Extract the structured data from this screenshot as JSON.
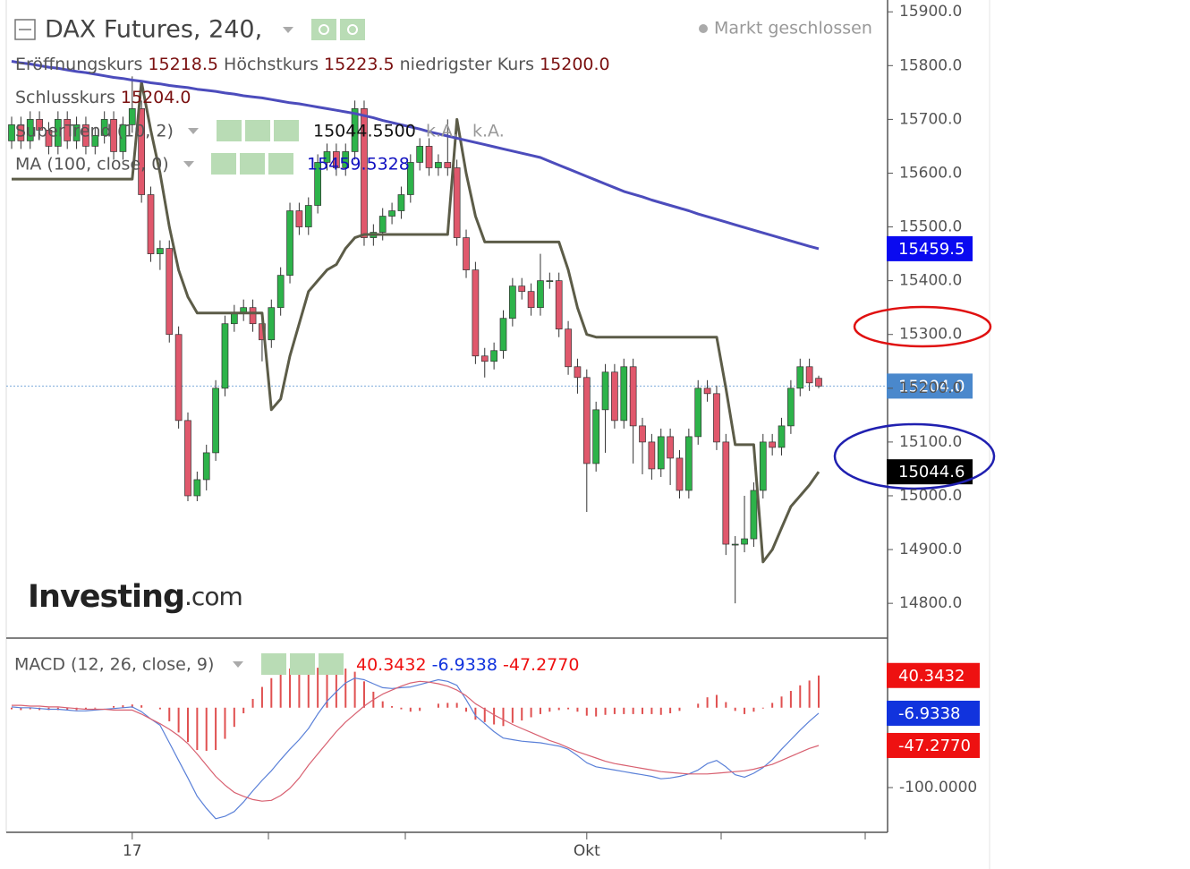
{
  "chart_data": [
    {
      "type": "candlestick",
      "title": "DAX Futures, 240,",
      "status": "Markt geschlossen",
      "ohlc_legend": [
        {
          "label": "Eröffnungskurs",
          "value": "15218.5"
        },
        {
          "label": "Höchstkurs",
          "value": "15223.5"
        },
        {
          "label": "niedrigster Kurs",
          "value": "15200.0"
        },
        {
          "label": "Schlusskurs",
          "value": "15204.0"
        }
      ],
      "watermark": [
        "Investing",
        ".com"
      ],
      "categories": [
        null,
        null,
        null,
        null,
        null,
        null,
        null,
        null,
        null,
        null,
        null,
        null,
        null,
        "17",
        null,
        null,
        null,
        null,
        null,
        null,
        null,
        null,
        null,
        null,
        null,
        null,
        null,
        null,
        null,
        null,
        null,
        null,
        null,
        null,
        null,
        null,
        null,
        null,
        null,
        null,
        null,
        null,
        null,
        null,
        null,
        null,
        null,
        null,
        null,
        null,
        null,
        null,
        null,
        null,
        null,
        null,
        null,
        null,
        null,
        null,
        null,
        null,
        "Okt",
        null,
        null,
        null,
        null,
        null,
        null,
        null,
        null,
        null,
        null,
        null,
        null,
        null,
        null,
        null,
        null,
        null,
        null,
        null,
        null,
        null,
        null,
        null,
        null,
        null
      ],
      "up_color": "#2db34a",
      "down_color": "#e0586c",
      "open": [
        15660,
        15690,
        15660,
        15700,
        15680,
        15650,
        15700,
        15660,
        15690,
        15650,
        15670,
        15700,
        15640,
        15690,
        15720,
        15560,
        15450,
        15460,
        15300,
        15140,
        15000,
        15030,
        15080,
        15200,
        15320,
        15340,
        15350,
        15320,
        15290,
        15350,
        15410,
        15530,
        15500,
        15540,
        15620,
        15640,
        15610,
        15640,
        15720,
        15480,
        15490,
        15520,
        15530,
        15560,
        15620,
        15650,
        15610,
        15620,
        15610,
        15480,
        15420,
        15260,
        15250,
        15270,
        15330,
        15390,
        15380,
        15350,
        15400,
        15400,
        15310,
        15240,
        15220,
        15060,
        15160,
        15230,
        15140,
        15240,
        15130,
        15100,
        15050,
        15110,
        15070,
        15010,
        15110,
        15200,
        15190,
        15100,
        14910,
        14910,
        14920,
        15010,
        15100,
        15090,
        15130,
        15200,
        15240,
        15218.5
      ],
      "high": [
        15705,
        15705,
        15715,
        15715,
        15695,
        15715,
        15715,
        15705,
        15705,
        15685,
        15715,
        15715,
        15705,
        15780,
        15735,
        15575,
        15475,
        15475,
        15315,
        15155,
        15045,
        15095,
        15215,
        15335,
        15355,
        15365,
        15365,
        15335,
        15365,
        15425,
        15545,
        15545,
        15555,
        15635,
        15655,
        15655,
        15655,
        15735,
        15735,
        15505,
        15535,
        15545,
        15575,
        15635,
        15665,
        15665,
        15635,
        15700,
        15625,
        15495,
        15435,
        15275,
        15285,
        15345,
        15405,
        15405,
        15395,
        15450,
        15415,
        15415,
        15325,
        15255,
        15235,
        15175,
        15245,
        15245,
        15255,
        15255,
        15145,
        15115,
        15125,
        15125,
        15085,
        15125,
        15215,
        15215,
        15205,
        15115,
        14925,
        15000,
        15025,
        15115,
        15115,
        15145,
        15215,
        15255,
        15255,
        15223.5
      ],
      "low": [
        15645,
        15645,
        15645,
        15665,
        15635,
        15635,
        15645,
        15645,
        15635,
        15635,
        15655,
        15625,
        15625,
        15675,
        15545,
        15435,
        15420,
        15285,
        15125,
        14990,
        14990,
        15010,
        15065,
        15185,
        15305,
        15325,
        15305,
        15250,
        15275,
        15335,
        15395,
        15485,
        15485,
        15525,
        15605,
        15595,
        15595,
        15625,
        15465,
        15465,
        15475,
        15505,
        15515,
        15545,
        15605,
        15595,
        15595,
        15595,
        15465,
        15405,
        15245,
        15220,
        15235,
        15255,
        15315,
        15365,
        15335,
        15335,
        15385,
        15295,
        15225,
        15190,
        14970,
        15045,
        15080,
        15125,
        15125,
        15060,
        15040,
        15030,
        15035,
        15020,
        14995,
        14995,
        15095,
        15175,
        15085,
        14890,
        14800,
        14895,
        14905,
        14995,
        15075,
        15075,
        15115,
        15185,
        15195,
        15200
      ],
      "close": [
        15690,
        15660,
        15700,
        15680,
        15650,
        15700,
        15660,
        15690,
        15650,
        15670,
        15700,
        15640,
        15690,
        15720,
        15560,
        15450,
        15460,
        15300,
        15140,
        15000,
        15030,
        15080,
        15200,
        15320,
        15340,
        15350,
        15320,
        15290,
        15350,
        15410,
        15530,
        15500,
        15540,
        15620,
        15640,
        15610,
        15640,
        15720,
        15480,
        15490,
        15520,
        15530,
        15560,
        15620,
        15650,
        15610,
        15620,
        15610,
        15480,
        15420,
        15260,
        15250,
        15270,
        15330,
        15390,
        15380,
        15350,
        15400,
        15400,
        15310,
        15240,
        15220,
        15060,
        15160,
        15230,
        15140,
        15240,
        15130,
        15100,
        15050,
        15110,
        15070,
        15010,
        15110,
        15200,
        15190,
        15100,
        14910,
        14910,
        14920,
        15010,
        15100,
        15090,
        15130,
        15200,
        15240,
        15210,
        15204
      ],
      "series": [
        {
          "name": "SuperTrend (10, 2)",
          "color": "#5c5c48",
          "width": 3,
          "legend_values": [
            "15044.5500",
            "k.A.",
            "k.A."
          ],
          "values": [
            15589,
            15589,
            15589,
            15589,
            15589,
            15589,
            15589,
            15589,
            15589,
            15589,
            15589,
            15589,
            15589,
            15589,
            15770,
            15680,
            15600,
            15500,
            15420,
            15370,
            15340,
            15340,
            15340,
            15340,
            15340,
            15340,
            15340,
            15340,
            15160,
            15180,
            15260,
            15320,
            15380,
            15400,
            15420,
            15430,
            15460,
            15480,
            15486,
            15486,
            15486,
            15486,
            15486,
            15486,
            15486,
            15486,
            15486,
            15486,
            15700,
            15600,
            15520,
            15472,
            15472,
            15472,
            15472,
            15472,
            15472,
            15472,
            15472,
            15472,
            15420,
            15350,
            15300,
            15295,
            15295,
            15295,
            15295,
            15295,
            15295,
            15295,
            15295,
            15295,
            15295,
            15295,
            15295,
            15295,
            15295,
            15200,
            15095,
            15095,
            15095,
            14877,
            14900,
            14940,
            14980,
            15000,
            15020,
            15044.6
          ]
        },
        {
          "name": "MA (100, close, 0)",
          "color": "#4c4cbc",
          "width": 3,
          "legend_values": [
            "15459.5328"
          ],
          "values": [
            15808,
            15805,
            15803,
            15800,
            15797,
            15795,
            15792,
            15789,
            15787,
            15784,
            15781,
            15778,
            15776,
            15773,
            15771,
            15768,
            15766,
            15763,
            15761,
            15759,
            15756,
            15754,
            15752,
            15749,
            15747,
            15744,
            15742,
            15740,
            15737,
            15734,
            15731,
            15729,
            15726,
            15723,
            15720,
            15717,
            15714,
            15711,
            15707,
            15703,
            15698,
            15694,
            15690,
            15686,
            15682,
            15677,
            15673,
            15669,
            15665,
            15661,
            15657,
            15653,
            15649,
            15645,
            15641,
            15637,
            15633,
            15629,
            15622,
            15615,
            15608,
            15601,
            15594,
            15587,
            15580,
            15573,
            15566,
            15561,
            15556,
            15550,
            15545,
            15540,
            15535,
            15530,
            15524,
            15519,
            15514,
            15509,
            15504,
            15499,
            15494,
            15489,
            15484,
            15479,
            15474,
            15469,
            15464,
            15459.5
          ]
        }
      ],
      "ylim": [
        14737,
        15922
      ],
      "yticks": [
        {
          "value": 14800,
          "label": "14800.0"
        },
        {
          "value": 14900,
          "label": "14900.0"
        },
        {
          "value": 15000,
          "label": "15000.0"
        },
        {
          "value": 15100,
          "label": "15100.0"
        },
        {
          "value": 15200,
          "label": "15200.0"
        },
        {
          "value": 15300,
          "label": "15300.0"
        },
        {
          "value": 15400,
          "label": "15400.0"
        },
        {
          "value": 15500,
          "label": "15500.0"
        },
        {
          "value": 15600,
          "label": "15600.0"
        },
        {
          "value": 15700,
          "label": "15700.0"
        },
        {
          "value": 15800,
          "label": "15800.0"
        },
        {
          "value": 15900,
          "label": "15900.0"
        }
      ],
      "price_markers": [
        {
          "value": 15459.5,
          "label": "15459.5",
          "color": "#0a0af0"
        },
        {
          "value": 15204,
          "label": "15204.0",
          "color": "#4a88cc",
          "line": true
        },
        {
          "value": 15044.6,
          "label": "15044.6",
          "color": "#000000"
        }
      ]
    },
    {
      "type": "macd",
      "title": "MACD (12, 26, close, 9)",
      "legend_values": [
        "40.3432",
        "-6.9338",
        "-47.2770"
      ],
      "series": [
        {
          "type": "bar",
          "color": "#e05050",
          "values": [
            -2,
            -3,
            -2,
            -3,
            -3,
            -3,
            -3,
            -3,
            -2,
            -1,
            0,
            2,
            3,
            4,
            3,
            0,
            -2,
            -17,
            -31,
            -43,
            -53,
            -54,
            -53,
            -39,
            -24,
            -7,
            11,
            26,
            37,
            45,
            49,
            48,
            46,
            50,
            52,
            50,
            49,
            45,
            33,
            20,
            8,
            2,
            -2,
            -5,
            -4,
            0,
            5,
            6,
            6,
            -5,
            -15,
            -18,
            -21,
            -23,
            -19,
            -16,
            -12,
            -8,
            -5,
            -3,
            -2,
            -5,
            -10,
            -11,
            -9,
            -8,
            -8,
            -8,
            -8,
            -8,
            -9,
            -7,
            -4,
            0,
            5,
            13,
            16,
            7,
            -4,
            -8,
            -5,
            -1,
            6,
            14,
            21,
            28,
            34,
            40.3432
          ]
        },
        {
          "type": "line",
          "color": "#5a80d8",
          "values": [
            1,
            0,
            0,
            -1,
            -2,
            -2,
            -3,
            -4,
            -4,
            -3,
            -2,
            -1,
            0,
            1,
            -5,
            -14,
            -22,
            -44,
            -66,
            -88,
            -111,
            -126,
            -139,
            -136,
            -130,
            -118,
            -104,
            -91,
            -79,
            -65,
            -52,
            -40,
            -26,
            -8,
            8,
            20,
            31,
            37,
            35,
            30,
            25,
            24,
            25,
            26,
            29,
            32,
            35,
            33,
            28,
            10,
            -10,
            -20,
            -30,
            -38,
            -40,
            -42,
            -43,
            -44,
            -46,
            -48,
            -52,
            -60,
            -69,
            -74,
            -76,
            -78,
            -80,
            -82,
            -84,
            -86,
            -89,
            -88,
            -86,
            -83,
            -78,
            -70,
            -66,
            -74,
            -84,
            -87,
            -82,
            -75,
            -65,
            -52,
            -40,
            -28,
            -17,
            -6.9338
          ]
        },
        {
          "type": "line",
          "color": "#d86070",
          "values": [
            3,
            3,
            2,
            2,
            1,
            1,
            0,
            -1,
            -2,
            -2,
            -2,
            -3,
            -3,
            -3,
            -8,
            -14,
            -20,
            -27,
            -35,
            -45,
            -58,
            -72,
            -86,
            -97,
            -106,
            -111,
            -115,
            -117,
            -116,
            -110,
            -101,
            -88,
            -72,
            -58,
            -44,
            -30,
            -18,
            -8,
            2,
            10,
            17,
            22,
            27,
            31,
            33,
            32,
            30,
            27,
            22,
            15,
            5,
            -2,
            -9,
            -15,
            -21,
            -26,
            -31,
            -36,
            -41,
            -45,
            -50,
            -55,
            -59,
            -63,
            -67,
            -70,
            -72,
            -74,
            -76,
            -78,
            -80,
            -81,
            -82,
            -83,
            -83,
            -83,
            -82,
            -81,
            -80,
            -79,
            -77,
            -74,
            -71,
            -66,
            -61,
            -56,
            -51,
            -47.277
          ]
        }
      ],
      "ylim": [
        -156,
        86
      ],
      "yticks": [
        {
          "value": -100,
          "label": "-100.0000"
        }
      ],
      "price_markers": [
        {
          "value": 40.3432,
          "label": "40.3432",
          "color": "#ee1111"
        },
        {
          "value": -6.9338,
          "label": "-6.9338",
          "color": "#1133dd"
        },
        {
          "value": -47.277,
          "label": "-47.2770",
          "color": "#ee1111"
        }
      ]
    }
  ]
}
